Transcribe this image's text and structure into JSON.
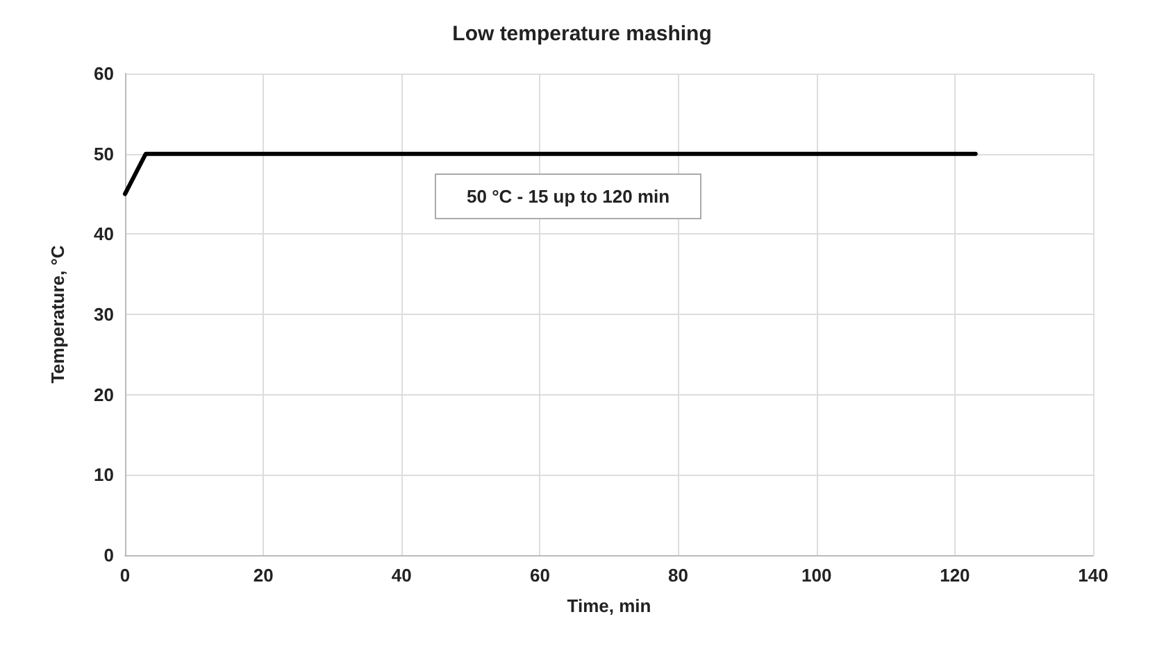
{
  "chart_data": {
    "type": "line",
    "title": "Low temperature mashing",
    "xlabel": "Time, min",
    "ylabel": "Temperature, °C",
    "x": [
      0,
      3,
      123
    ],
    "series": [
      {
        "color": "#000000",
        "values": [
          45,
          50,
          50
        ]
      }
    ],
    "xlim": [
      0,
      140
    ],
    "xticks": [
      0,
      20,
      40,
      60,
      80,
      100,
      120,
      140
    ],
    "ylim": [
      0,
      60
    ],
    "yticks": [
      0,
      10,
      20,
      30,
      40,
      50,
      60
    ],
    "grid": true,
    "marker": "none",
    "line_style": "solid",
    "annotations": [
      "50 °C - 15 up to 120 min"
    ]
  }
}
